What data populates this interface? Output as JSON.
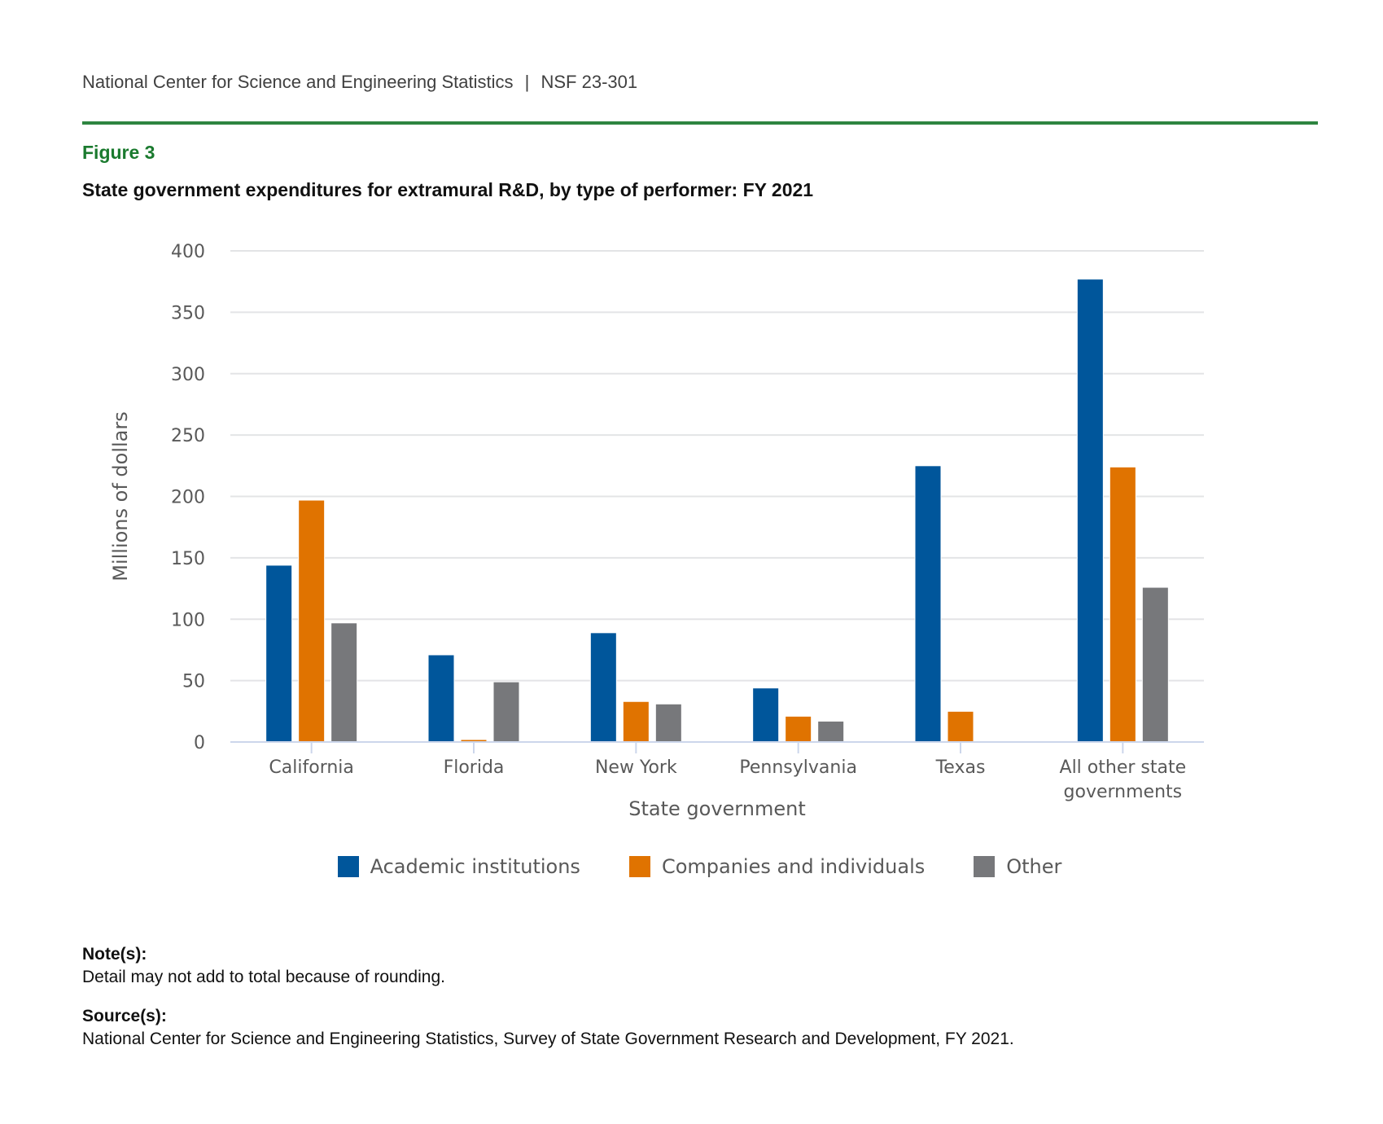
{
  "header": {
    "org": "National Center for Science and Engineering Statistics",
    "separator": "|",
    "report": "NSF 23-301"
  },
  "figure": {
    "label": "Figure 3",
    "title": "State government expenditures for extramural R&D, by type of performer: FY 2021"
  },
  "notes": {
    "note_label": "Note(s):",
    "note_text": "Detail may not add to total because of rounding.",
    "source_label": "Source(s):",
    "source_text": "National Center for Science and Engineering Statistics, Survey of State Government Research and Development, FY 2021."
  },
  "chart_data": {
    "type": "bar",
    "title": "State government expenditures for extramural R&D, by type of performer: FY 2021",
    "xlabel": "State government",
    "ylabel": "Millions of dollars",
    "ylim": [
      0,
      400
    ],
    "yticks": [
      0,
      50,
      100,
      150,
      200,
      250,
      300,
      350,
      400
    ],
    "grid": true,
    "legend_position": "bottom-center",
    "categories": [
      "California",
      "Florida",
      "New York",
      "Pennsylvania",
      "Texas",
      "All other state governments"
    ],
    "category_lines": [
      [
        "California"
      ],
      [
        "Florida"
      ],
      [
        "New York"
      ],
      [
        "Pennsylvania"
      ],
      [
        "Texas"
      ],
      [
        "All other state",
        "governments"
      ]
    ],
    "series": [
      {
        "name": "Academic institutions",
        "color": "#00569b",
        "values": [
          144,
          71,
          89,
          44,
          225,
          377
        ]
      },
      {
        "name": "Companies and individuals",
        "color": "#e07300",
        "values": [
          197,
          2,
          33,
          21,
          25,
          224
        ]
      },
      {
        "name": "Other",
        "color": "#77787b",
        "values": [
          97,
          49,
          31,
          17,
          0,
          126
        ]
      }
    ]
  }
}
